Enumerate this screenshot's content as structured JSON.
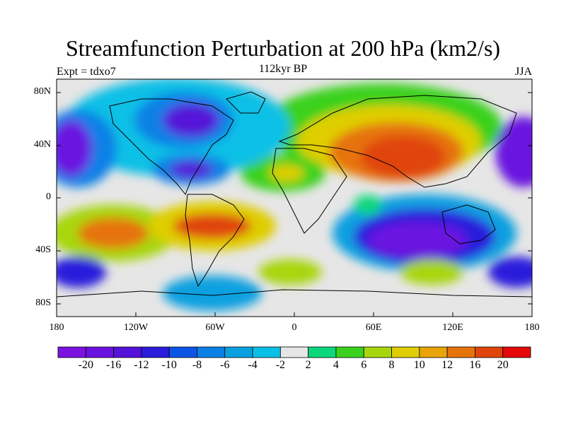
{
  "title": "Streamfunction Perturbation at 200 hPa (km2/s)",
  "subtitle": "112kyr BP",
  "experiment_label": "Expt = tdxo7",
  "season": "JJA",
  "map": {
    "projection": "cylindrical equidistant",
    "lat_ticks": [
      "80N",
      "40N",
      "0",
      "40S",
      "80S"
    ],
    "lon_ticks": [
      "180",
      "120W",
      "60W",
      "0",
      "60E",
      "120E",
      "180"
    ],
    "features": [
      {
        "name": "North Pacific / NE Pacific low",
        "sign": "negative",
        "approx_value": -18
      },
      {
        "name": "North America low",
        "sign": "negative",
        "approx_value": -16
      },
      {
        "name": "Eurasia / Tibet high",
        "sign": "positive",
        "approx_value": 20
      },
      {
        "name": "South Indian Ocean / Australia low",
        "sign": "negative",
        "approx_value": -20
      },
      {
        "name": "Central South Pacific high",
        "sign": "positive",
        "approx_value": 14
      },
      {
        "name": "South Atlantic / Brazil high",
        "sign": "positive",
        "approx_value": 14
      }
    ]
  },
  "colorbar": {
    "colors": [
      "#7c12e0",
      "#6a12e0",
      "#5512d9",
      "#2b1cdc",
      "#0b55e6",
      "#0a80e6",
      "#0aa0e0",
      "#0ac0e6",
      "#e6e6e6",
      "#0ad77b",
      "#3ad11d",
      "#a8d60c",
      "#dfce06",
      "#e8a50a",
      "#e6730a",
      "#e0450c",
      "#e60a0a"
    ],
    "labels": [
      "-20",
      "-16",
      "-12",
      "-10",
      "-8",
      "-6",
      "-4",
      "-2",
      "2",
      "4",
      "6",
      "8",
      "10",
      "12",
      "16",
      "20"
    ]
  }
}
